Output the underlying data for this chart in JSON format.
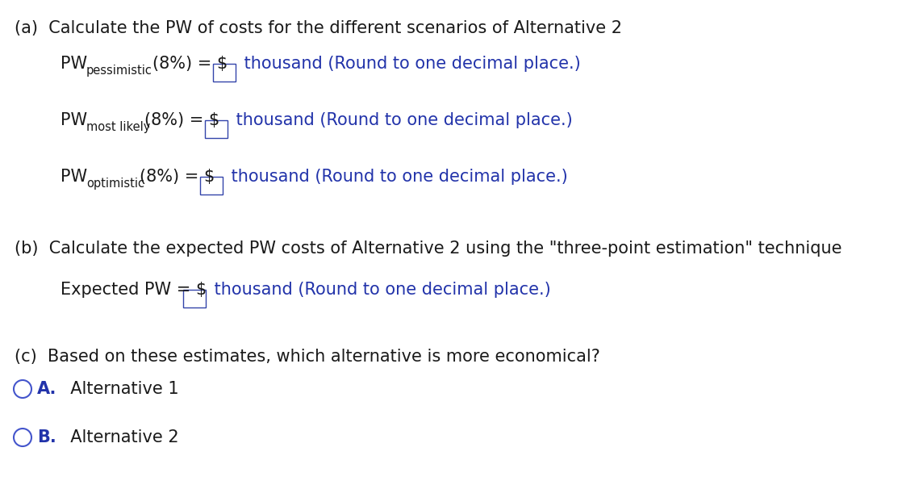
{
  "bg_color": "#ffffff",
  "text_color_blue": "#2233aa",
  "text_color_dark": "#1a1a1a",
  "part_a_header": "(a)  Calculate the PW of costs for the different scenarios of Alternative 2",
  "part_b_header": "(b)  Calculate the expected PW costs of Alternative 2 using the \"three-point estimation\" technique",
  "part_c_header": "(c)  Based on these estimates, which alternative is more economical?",
  "sub1": "pessimistic",
  "sub2": "most likely",
  "sub3": "optimistic",
  "suffix": "(8%) = $",
  "trail": " thousand (Round to one decimal place.)",
  "expected_prefix": "Expected PW = $",
  "option_A_letter": "A.",
  "option_A_text": "  Alternative 1",
  "option_B_letter": "B.",
  "option_B_text": "  Alternative 2",
  "font_size_main": 15,
  "font_size_sub": 10.5,
  "font_size_header": 15
}
